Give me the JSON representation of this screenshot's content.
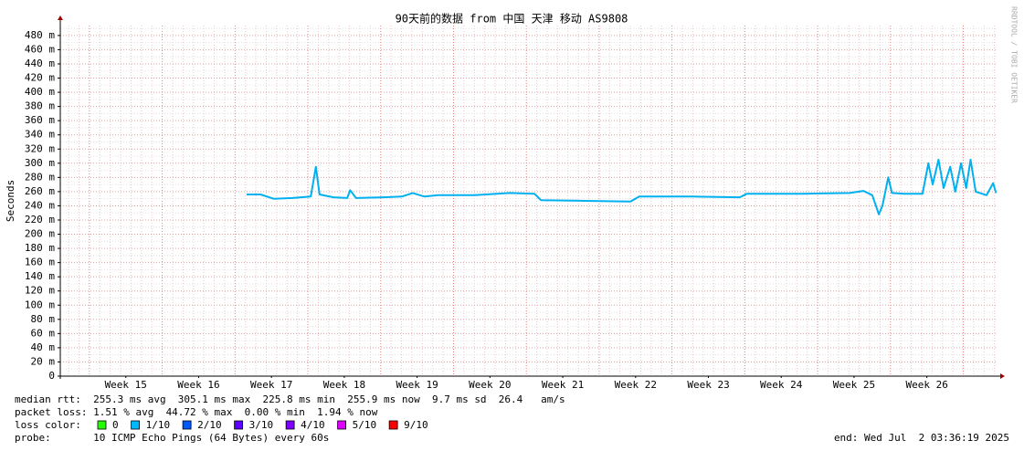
{
  "chart_data": {
    "type": "line",
    "title": "90天前的数据 from 中国 天津 移动 AS9808",
    "y_label": "Seconds",
    "watermark": "RRDTOOL / TOBI OETIKER",
    "color": "#00b0f0",
    "x": [
      17.16,
      17.35,
      17.53,
      17.79,
      18.04,
      18.11,
      18.16,
      18.35,
      18.54,
      18.58,
      18.66,
      19.04,
      19.29,
      19.44,
      19.6,
      19.79,
      20.29,
      20.77,
      21.11,
      21.2,
      21.8,
      22.43,
      22.55,
      23.31,
      23.93,
      24.03,
      24.81,
      25.44,
      25.63,
      25.75,
      25.84,
      25.89,
      25.97,
      26.02,
      26.19,
      26.44,
      26.52,
      26.58,
      26.66,
      26.73,
      26.82,
      26.89,
      26.97,
      27.04,
      27.1,
      27.17,
      27.32,
      27.41,
      27.45
    ],
    "values": [
      256,
      256,
      250,
      251,
      253,
      295,
      256,
      252,
      251,
      262,
      251,
      252,
      253,
      258,
      253,
      255,
      255,
      258,
      257,
      248,
      247,
      246,
      253,
      253,
      252,
      257,
      257,
      258,
      261,
      255,
      228,
      240,
      280,
      258,
      257,
      257,
      300,
      270,
      305,
      265,
      295,
      260,
      300,
      265,
      305,
      260,
      255,
      272,
      258
    ],
    "xlim": [
      14.6,
      27.47
    ],
    "xticks": [
      {
        "value": 15.5,
        "label": "Week 15"
      },
      {
        "value": 16.5,
        "label": "Week 16"
      },
      {
        "value": 17.5,
        "label": "Week 17"
      },
      {
        "value": 18.5,
        "label": "Week 18"
      },
      {
        "value": 19.5,
        "label": "Week 19"
      },
      {
        "value": 20.5,
        "label": "Week 20"
      },
      {
        "value": 21.5,
        "label": "Week 21"
      },
      {
        "value": 22.5,
        "label": "Week 22"
      },
      {
        "value": 23.5,
        "label": "Week 23"
      },
      {
        "value": 24.5,
        "label": "Week 24"
      },
      {
        "value": 25.5,
        "label": "Week 25"
      },
      {
        "value": 26.5,
        "label": "Week 26"
      }
    ],
    "ylim": [
      0,
      494
    ],
    "yticks": [
      0,
      {
        "value": 20,
        "label": "20 m"
      },
      {
        "value": 40,
        "label": "40 m"
      },
      {
        "value": 60,
        "label": "60 m"
      },
      {
        "value": 80,
        "label": "80 m"
      },
      {
        "value": 100,
        "label": "100 m"
      },
      {
        "value": 120,
        "label": "120 m"
      },
      {
        "value": 140,
        "label": "140 m"
      },
      {
        "value": 160,
        "label": "160 m"
      },
      {
        "value": 180,
        "label": "180 m"
      },
      {
        "value": 200,
        "label": "200 m"
      },
      {
        "value": 220,
        "label": "220 m"
      },
      {
        "value": 240,
        "label": "240 m"
      },
      {
        "value": 260,
        "label": "260 m"
      },
      {
        "value": 280,
        "label": "280 m"
      },
      {
        "value": 300,
        "label": "300 m"
      },
      {
        "value": 320,
        "label": "320 m"
      },
      {
        "value": 340,
        "label": "340 m"
      },
      {
        "value": 360,
        "label": "360 m"
      },
      {
        "value": 380,
        "label": "380 m"
      },
      {
        "value": 400,
        "label": "400 m"
      },
      {
        "value": 420,
        "label": "420 m"
      },
      {
        "value": 440,
        "label": "440 m"
      },
      {
        "value": 460,
        "label": "460 m"
      },
      {
        "value": 480,
        "label": "480 m"
      }
    ],
    "grid": true,
    "stats": [
      "median rtt:  255.3 ms avg  305.1 ms max  225.8 ms min  255.9 ms now  9.7 ms sd  26.4   am/s",
      "packet loss: 1.51 % avg  44.72 % max  0.00 % min  1.94 % now"
    ],
    "loss_color": {
      "label": "loss color:",
      "items": [
        {
          "label": "0",
          "color": "#26ff00"
        },
        {
          "label": "1/10",
          "color": "#00b8ff"
        },
        {
          "label": "2/10",
          "color": "#0059ff"
        },
        {
          "label": "3/10",
          "color": "#5e00ff"
        },
        {
          "label": "4/10",
          "color": "#7e00ff"
        },
        {
          "label": "5/10",
          "color": "#dd00ff"
        },
        {
          "label": "9/10",
          "color": "#ff0000"
        }
      ]
    },
    "probe": "probe:       10 ICMP Echo Pings (64 Bytes) every 60s",
    "end": "end: Wed Jul  2 03:36:19 2025"
  }
}
